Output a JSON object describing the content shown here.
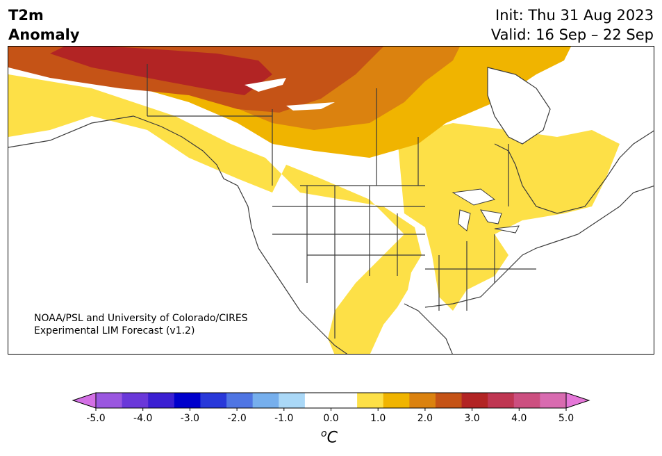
{
  "header": {
    "title_line1": "T2m",
    "title_line2": "Anomaly",
    "init": "Init: Thu 31 Aug 2023",
    "valid": "Valid: 16 Sep – 22 Sep"
  },
  "credit": {
    "line1": "NOAA/PSL and University of Colorado/CIRES",
    "line2": "Experimental LIM Forecast (v1.2)"
  },
  "colorbar": {
    "ticks": [
      "-5.0",
      "-4.0",
      "-3.0",
      "-2.0",
      "-1.0",
      "0.0",
      "1.0",
      "2.0",
      "3.0",
      "4.0",
      "5.0"
    ],
    "unit": "C",
    "unit_sup": "o",
    "colors": [
      "#d36fe5",
      "#9a57e0",
      "#6a38d9",
      "#3b1fd2",
      "#0000cc",
      "#2838d9",
      "#4f75e3",
      "#76afed",
      "#aad8f7",
      "#ffffff",
      "#ffffff",
      "#fde047",
      "#f0b400",
      "#db820f",
      "#c55316",
      "#b22424",
      "#bf3652",
      "#cc4f80",
      "#d86bb0",
      "#e577d8"
    ]
  },
  "map_colors": {
    "light_yellow": "#fde047",
    "gold": "#f0b400",
    "orange": "#db820f",
    "dark_orange": "#c55316",
    "red": "#b22424",
    "border": "#3a3a3a"
  }
}
